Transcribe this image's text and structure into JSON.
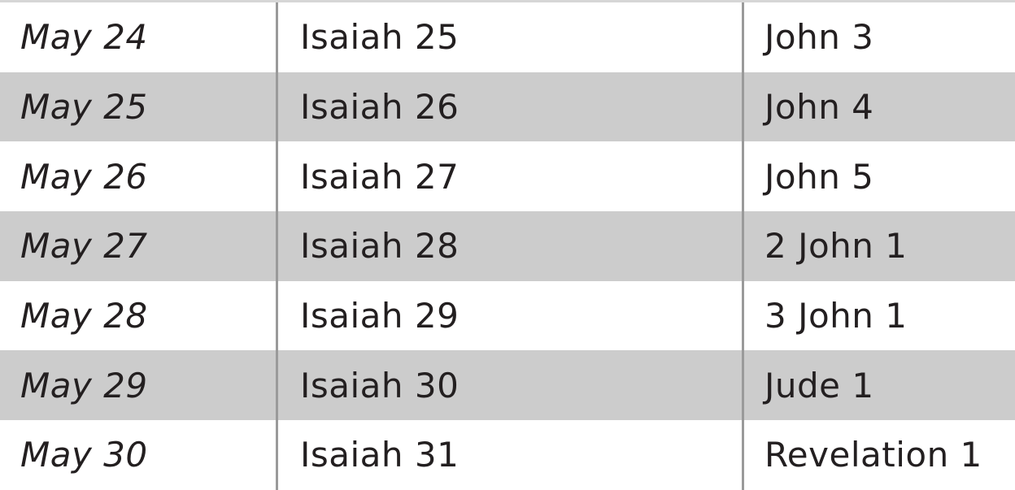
{
  "colors": {
    "stripe": "#cccccc",
    "divider": "#9a9a9a",
    "text": "#231f20"
  },
  "rows": [
    {
      "date": "May 24",
      "ot": "Isaiah 25",
      "nt": "John 3"
    },
    {
      "date": "May 25",
      "ot": "Isaiah 26",
      "nt": "John 4"
    },
    {
      "date": "May 26",
      "ot": "Isaiah 27",
      "nt": "John 5"
    },
    {
      "date": "May 27",
      "ot": "Isaiah 28",
      "nt": "2 John 1"
    },
    {
      "date": "May 28",
      "ot": "Isaiah 29",
      "nt": "3 John 1"
    },
    {
      "date": "May 29",
      "ot": "Isaiah 30",
      "nt": "Jude 1"
    },
    {
      "date": "May 30",
      "ot": "Isaiah 31",
      "nt": "Revelation 1"
    }
  ]
}
